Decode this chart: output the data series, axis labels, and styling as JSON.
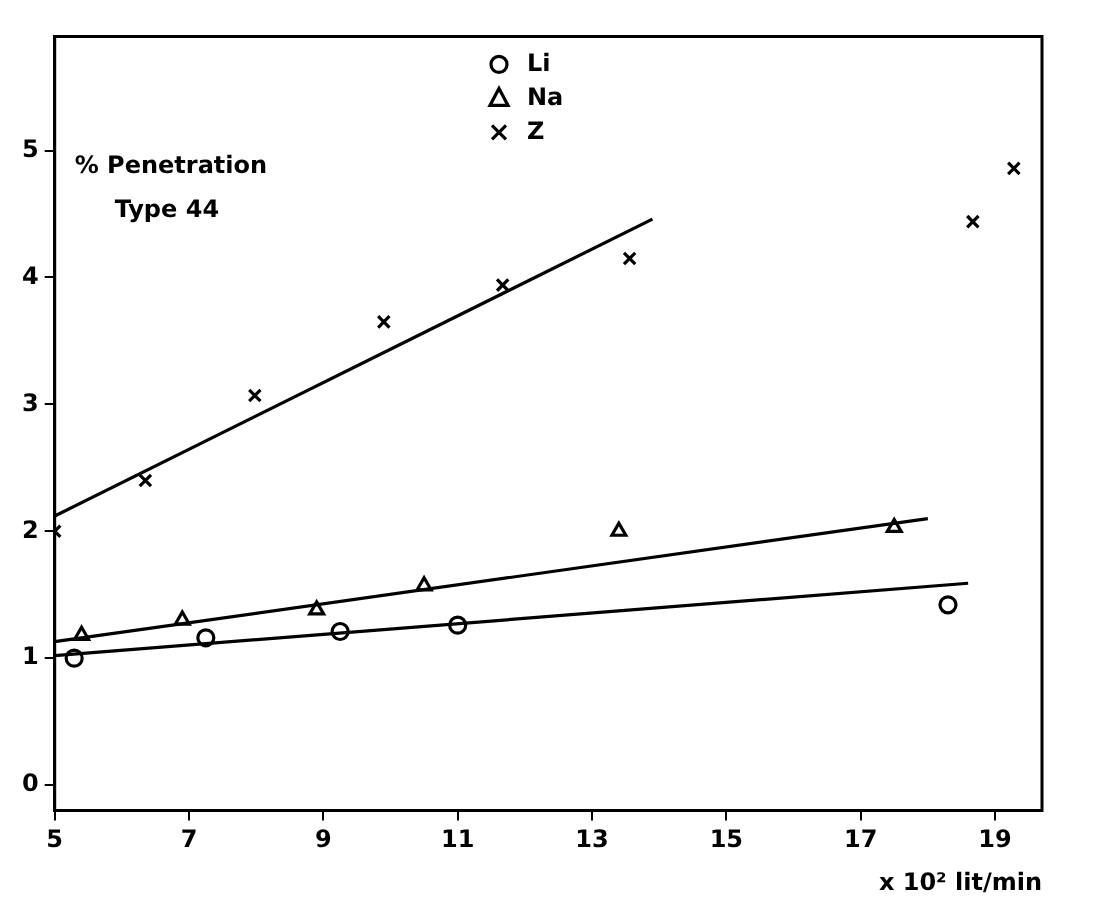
{
  "chart_data": {
    "type": "scatter",
    "xlabel": "x 10² lit/min",
    "annotations": [
      "% Penetration",
      "Type 44"
    ],
    "xlim": [
      5,
      19.7
    ],
    "ylim": [
      -0.2,
      5.9
    ],
    "xticks": [
      5,
      7,
      9,
      11,
      13,
      15,
      17,
      19
    ],
    "yticks": [
      0,
      1,
      2,
      3,
      4,
      5
    ],
    "grid": false,
    "legend": "top",
    "tick_labels": "xy",
    "series": [
      {
        "name": "Li",
        "type": "scatter",
        "marker": "circle",
        "color": "#000000",
        "x": [
          5.29,
          7.25,
          9.25,
          11.0,
          18.3
        ],
        "values": [
          1.0,
          1.16,
          1.21,
          1.26,
          1.42
        ]
      },
      {
        "name": "Na",
        "type": "scatter",
        "marker": "triangle",
        "color": "#000000",
        "x": [
          5.4,
          6.9,
          8.9,
          10.5,
          13.4,
          17.5
        ],
        "values": [
          1.18,
          1.3,
          1.38,
          1.57,
          2.0,
          2.03
        ]
      },
      {
        "name": "Z",
        "type": "scatter",
        "marker": "cross",
        "color": "#000000",
        "x": [
          5.0,
          6.35,
          7.98,
          9.9,
          11.67,
          13.56,
          18.67,
          19.28
        ],
        "values": [
          2.0,
          2.4,
          3.07,
          3.65,
          3.94,
          4.15,
          4.44,
          4.86
        ]
      },
      {
        "type": "line",
        "color": "#000000",
        "x": [
          5,
          18.6
        ],
        "values": [
          1.02,
          1.59
        ]
      },
      {
        "type": "line",
        "color": "#000000",
        "x": [
          5,
          18.0
        ],
        "values": [
          1.13,
          2.1
        ]
      },
      {
        "type": "line",
        "color": "#000000",
        "x": [
          5,
          13.9
        ],
        "values": [
          2.12,
          4.46
        ]
      }
    ]
  }
}
